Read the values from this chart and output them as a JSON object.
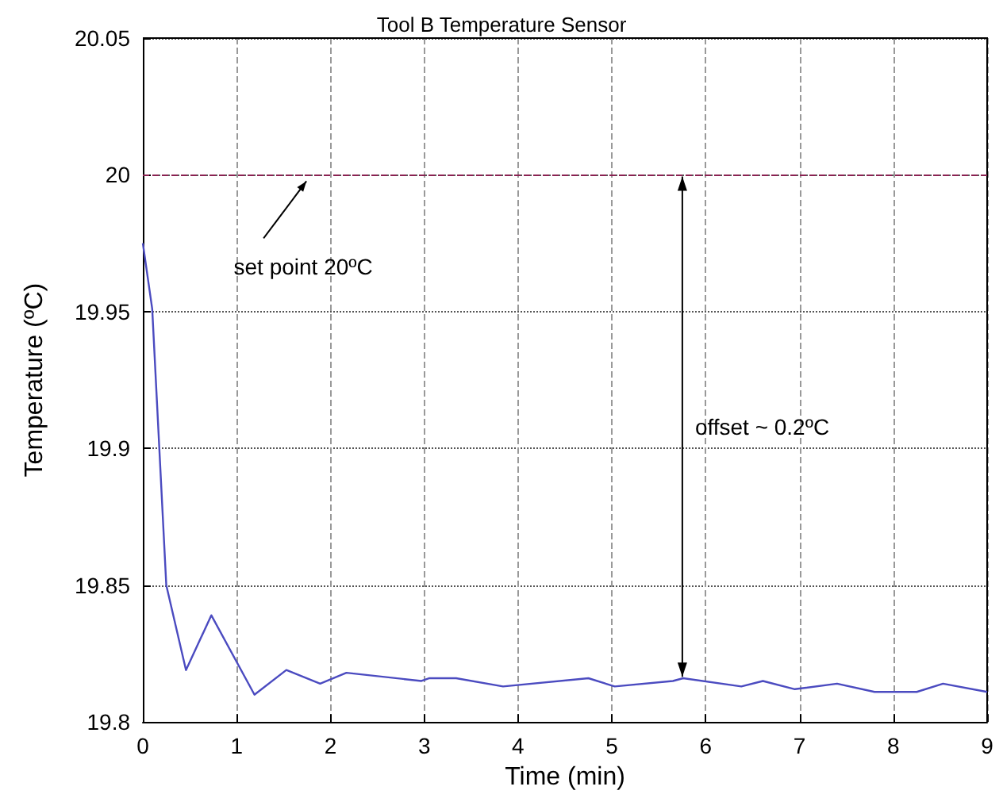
{
  "chart_data": {
    "type": "line",
    "title": "Tool B Temperature Sensor",
    "xlabel": "Time (min)",
    "ylabel": "Temperature (ºC)",
    "x": [
      0,
      0.1,
      0.25,
      0.46,
      0.73,
      1.19,
      1.53,
      1.89,
      2.17,
      2.97,
      3.05,
      3.34,
      3.84,
      4.75,
      5.03,
      5.65,
      5.76,
      6.38,
      6.61,
      6.95,
      7.4,
      7.8,
      8.25,
      8.53,
      9.0
    ],
    "series": [
      {
        "color": "#4b4bc0",
        "values": [
          19.975,
          19.951,
          19.85,
          19.819,
          19.839,
          19.81,
          19.819,
          19.814,
          19.818,
          19.815,
          19.816,
          19.816,
          19.813,
          19.816,
          19.813,
          19.815,
          19.816,
          19.813,
          19.815,
          19.812,
          19.814,
          19.811,
          19.811,
          19.814,
          19.811
        ]
      }
    ],
    "xlim": [
      0,
      9
    ],
    "xticks": [
      0,
      1,
      2,
      3,
      4,
      5,
      6,
      7,
      8,
      9
    ],
    "ylim": [
      19.8,
      20.05
    ],
    "yticks": [
      19.8,
      19.85,
      19.9,
      19.95,
      20,
      20.05
    ],
    "grid": true,
    "marker": "none",
    "line_style": "solid",
    "ref_lines": [
      {
        "axis": "y",
        "value": 20,
        "label": "set point 20ºC",
        "color": "#8b2252",
        "line_style": "dashed"
      }
    ],
    "annotations": [
      "offset ~ 0.2ºC"
    ]
  }
}
